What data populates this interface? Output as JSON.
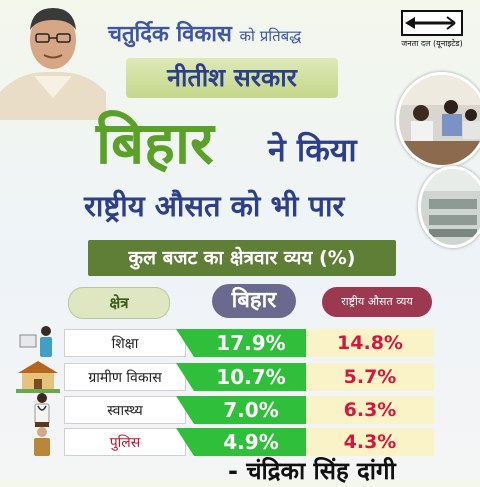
{
  "header": {
    "line1_main": "चतुर्दिक विकास",
    "line1_small": "को प्रतिबद्ध",
    "line2": "नीतीश सरकार",
    "bihar": "बिहार",
    "ne_kiya": "ने किया",
    "line4": "राष्ट्रीय औसत को भी पार",
    "budget_title": "कुल बजट का क्षेत्रवार व्यय (%)"
  },
  "party": {
    "name": "जनता दल (यूनाइटेड)"
  },
  "table": {
    "col_sector": "क्षेत्र",
    "col_bihar": "बिहार",
    "col_national": "राष्ट्रीय औसत व्यय",
    "rows": [
      {
        "sector": "शिक्षा",
        "bihar": "17.9%",
        "national": "14.8%"
      },
      {
        "sector": "ग्रामीण विकास",
        "bihar": "10.7%",
        "national": "5.7%"
      },
      {
        "sector": "स्वास्थ्य",
        "bihar": "7.0%",
        "national": "6.3%"
      },
      {
        "sector": "पुलिस",
        "bihar": "4.9%",
        "national": "4.3%"
      }
    ]
  },
  "signature": "- चंद्रिका सिंह दांगी",
  "colors": {
    "accent_green": "#2fbf3a",
    "national_red": "#d4183d",
    "title_blue": "#2c3f8a",
    "bihar_green": "#5aa128"
  }
}
